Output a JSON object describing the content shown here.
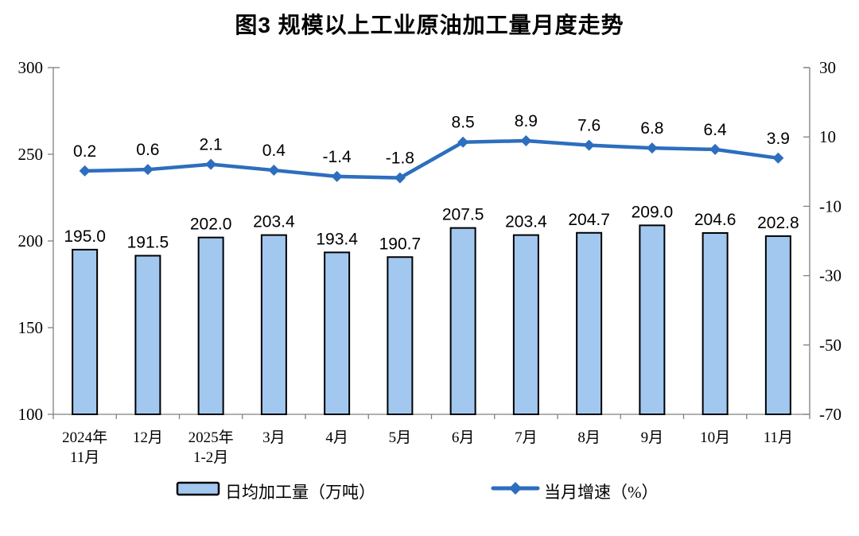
{
  "chart_data": {
    "type": "combo",
    "title": "图3 规模以上工业原油加工量月度走势",
    "categories": [
      [
        "2024年",
        "11月"
      ],
      [
        "12月"
      ],
      [
        "2025年",
        "1-2月"
      ],
      [
        "3月"
      ],
      [
        "4月"
      ],
      [
        "5月"
      ],
      [
        "6月"
      ],
      [
        "7月"
      ],
      [
        "8月"
      ],
      [
        "9月"
      ],
      [
        "10月"
      ],
      [
        "11月"
      ]
    ],
    "series": [
      {
        "name": "日均加工量（万吨）",
        "type": "bar",
        "axis": "left",
        "values": [
          195.0,
          191.5,
          202.0,
          203.4,
          193.4,
          190.7,
          207.5,
          203.4,
          204.7,
          209.0,
          204.6,
          202.8
        ],
        "color": "#A2C8F0",
        "border_color": "#000000"
      },
      {
        "name": "当月增速（%）",
        "type": "line",
        "axis": "right",
        "values": [
          0.2,
          0.6,
          2.1,
          0.4,
          -1.4,
          -1.8,
          8.5,
          8.9,
          7.6,
          6.8,
          6.4,
          3.9
        ],
        "color": "#2D6EBE",
        "marker": "diamond"
      }
    ],
    "left_axis": {
      "min": 100,
      "max": 300,
      "ticks": [
        300,
        250,
        200,
        150,
        100
      ]
    },
    "right_axis": {
      "min": -70,
      "max": 30,
      "ticks": [
        30,
        10,
        -10,
        -30,
        -50,
        -70
      ]
    },
    "grid": false,
    "data_labels": true,
    "data_label_decimals": 1,
    "legend_position": "bottom",
    "colors": {
      "axis": "#808080",
      "text": "#000000",
      "background": "#FFFFFF"
    }
  }
}
